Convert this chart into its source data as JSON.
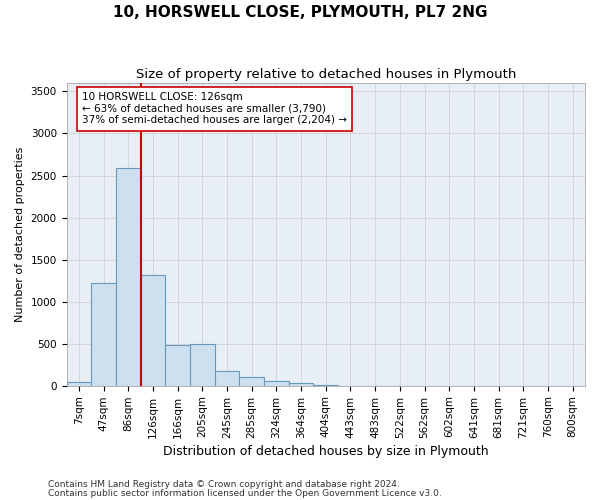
{
  "title": "10, HORSWELL CLOSE, PLYMOUTH, PL7 2NG",
  "subtitle": "Size of property relative to detached houses in Plymouth",
  "xlabel": "Distribution of detached houses by size in Plymouth",
  "ylabel": "Number of detached properties",
  "categories": [
    "7sqm",
    "47sqm",
    "86sqm",
    "126sqm",
    "166sqm",
    "205sqm",
    "245sqm",
    "285sqm",
    "324sqm",
    "364sqm",
    "404sqm",
    "443sqm",
    "483sqm",
    "522sqm",
    "562sqm",
    "602sqm",
    "641sqm",
    "681sqm",
    "721sqm",
    "760sqm",
    "800sqm"
  ],
  "bar_values": [
    40,
    1220,
    2590,
    1320,
    490,
    500,
    175,
    100,
    55,
    30,
    5,
    0,
    0,
    0,
    0,
    0,
    0,
    0,
    0,
    0,
    0
  ],
  "bar_color": "#cce0f0",
  "bar_edge_color": "#6699bb",
  "bar_edge_width": 0.8,
  "grid_color": "#cccccc",
  "plot_bg_color": "#e8eef5",
  "background_color": "#ffffff",
  "property_line_color": "#cc0000",
  "annotation_text": "10 HORSWELL CLOSE: 126sqm\n← 63% of detached houses are smaller (3,790)\n37% of semi-detached houses are larger (2,204) →",
  "annotation_box_color": "#ffffff",
  "annotation_box_edge": "#cc0000",
  "ylim": [
    0,
    3600
  ],
  "yticks": [
    0,
    500,
    1000,
    1500,
    2000,
    2500,
    3000,
    3500
  ],
  "footer1": "Contains HM Land Registry data © Crown copyright and database right 2024.",
  "footer2": "Contains public sector information licensed under the Open Government Licence v3.0.",
  "title_fontsize": 11,
  "subtitle_fontsize": 9.5,
  "xlabel_fontsize": 9,
  "ylabel_fontsize": 8,
  "tick_fontsize": 7.5,
  "annotation_fontsize": 7.5,
  "footer_fontsize": 6.5
}
